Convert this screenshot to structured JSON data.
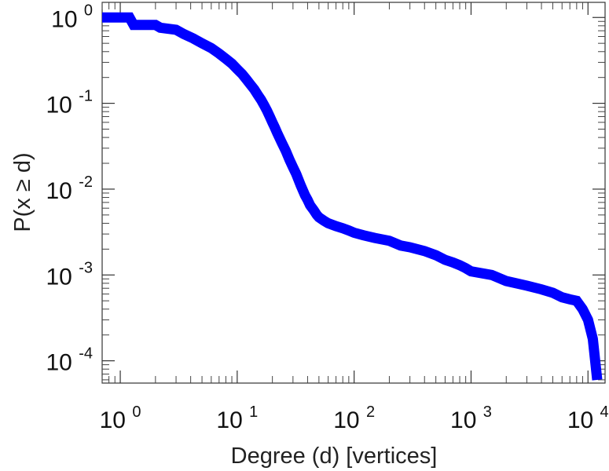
{
  "chart_data": {
    "type": "line",
    "xlabel": "Degree (d) [vertices]",
    "ylabel": "P(x ≥ d)",
    "x_scale": "log",
    "y_scale": "log",
    "xlim": [
      0.7,
      14000
    ],
    "ylim": [
      5.5e-05,
      1.5
    ],
    "grid": false,
    "series_color": "#0000ff",
    "x_ticks": [
      {
        "base": "10",
        "exp": "0",
        "value": 1
      },
      {
        "base": "10",
        "exp": "1",
        "value": 10
      },
      {
        "base": "10",
        "exp": "2",
        "value": 100
      },
      {
        "base": "10",
        "exp": "3",
        "value": 1000
      },
      {
        "base": "10",
        "exp": "4",
        "value": 10000
      }
    ],
    "y_ticks": [
      {
        "base": "10",
        "exp": "0",
        "value": 1
      },
      {
        "base": "10",
        "exp": "-1",
        "value": 0.1
      },
      {
        "base": "10",
        "exp": "-2",
        "value": 0.01
      },
      {
        "base": "10",
        "exp": "-3",
        "value": 0.001
      },
      {
        "base": "10",
        "exp": "-4",
        "value": 0.0001
      }
    ],
    "series": [
      {
        "x": [
          0.7,
          1.2,
          1.3,
          2,
          2.2,
          3,
          3.5,
          4.2,
          5,
          6,
          7,
          8,
          9,
          10,
          11,
          12,
          13,
          14,
          15,
          16,
          17,
          18,
          19,
          20,
          21,
          22,
          24,
          26,
          28,
          30,
          32,
          35,
          38,
          40,
          42,
          45,
          48,
          50,
          55,
          60,
          70,
          80,
          90,
          100,
          120,
          150,
          200,
          250,
          300,
          400,
          500,
          600,
          700,
          800,
          900,
          1000,
          1500,
          2000,
          3000,
          4000,
          5000,
          6000,
          7000,
          8000,
          9000,
          10000,
          11000,
          12000
        ],
        "y": [
          1.0,
          1.0,
          0.82,
          0.82,
          0.76,
          0.72,
          0.64,
          0.57,
          0.5,
          0.44,
          0.38,
          0.33,
          0.29,
          0.25,
          0.22,
          0.19,
          0.165,
          0.145,
          0.125,
          0.11,
          0.095,
          0.082,
          0.07,
          0.06,
          0.052,
          0.045,
          0.035,
          0.028,
          0.022,
          0.018,
          0.015,
          0.011,
          0.0085,
          0.0075,
          0.0065,
          0.0057,
          0.005,
          0.0047,
          0.0043,
          0.004,
          0.0037,
          0.0035,
          0.0033,
          0.0031,
          0.0029,
          0.0027,
          0.0025,
          0.0022,
          0.0021,
          0.0019,
          0.0017,
          0.0015,
          0.0014,
          0.0013,
          0.0012,
          0.0011,
          0.001,
          0.00085,
          0.00075,
          0.00068,
          0.00062,
          0.00055,
          0.00052,
          0.0005,
          0.0004,
          0.0003,
          0.00018,
          6e-05
        ]
      }
    ]
  }
}
